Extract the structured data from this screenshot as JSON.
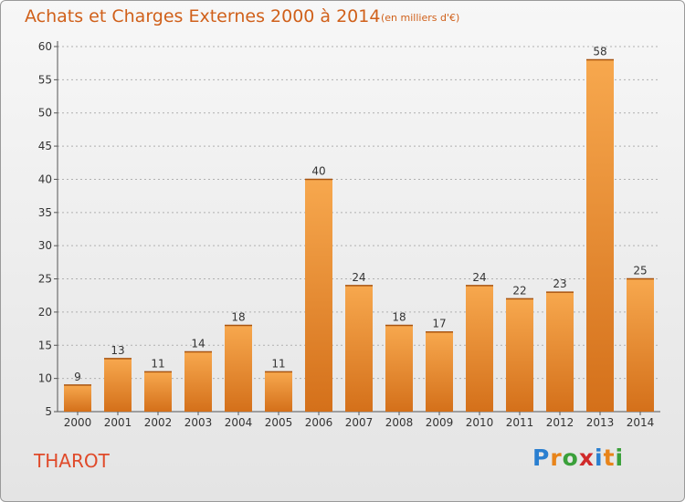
{
  "title": "Achats et Charges Externes 2000 à 2014",
  "subtitle": "(en milliers d'€)",
  "commune": "THAROT",
  "logo": {
    "letters": [
      "P",
      "r",
      "o",
      "x",
      "i",
      "t",
      "i"
    ],
    "colors": [
      "#2a7fd0",
      "#e8841a",
      "#3aa03a",
      "#d02a2a",
      "#2a7fd0",
      "#e8841a",
      "#3aa03a"
    ]
  },
  "colors": {
    "bar_top": "#f7a84e",
    "bar_bottom": "#d4701a",
    "text": "#d0601a",
    "grid": "#b0b0b0"
  },
  "chart_data": {
    "type": "bar",
    "categories": [
      "2000",
      "2001",
      "2002",
      "2003",
      "2004",
      "2005",
      "2006",
      "2007",
      "2008",
      "2009",
      "2010",
      "2011",
      "2012",
      "2013",
      "2014"
    ],
    "values": [
      9,
      13,
      11,
      14,
      18,
      11,
      40,
      24,
      18,
      17,
      24,
      22,
      23,
      58,
      25
    ],
    "ylim": [
      5,
      60
    ],
    "yticks": [
      5,
      10,
      15,
      20,
      25,
      30,
      35,
      40,
      45,
      50,
      55,
      60
    ],
    "grid": true
  }
}
